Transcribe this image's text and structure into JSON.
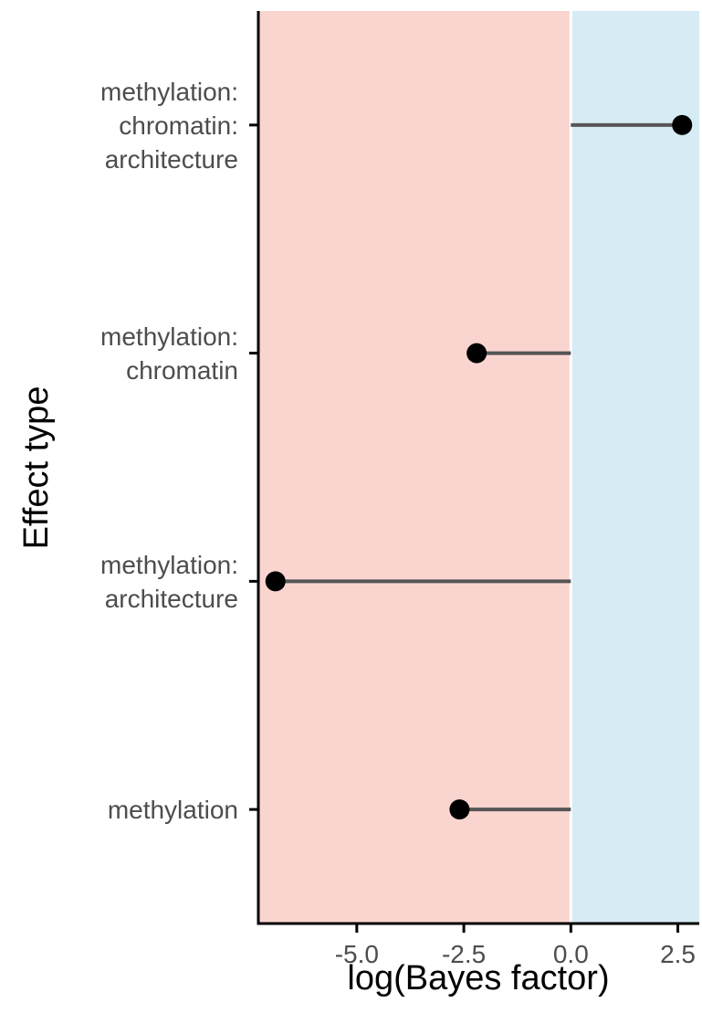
{
  "chart_data": {
    "type": "lollipop",
    "orientation": "horizontal",
    "xlabel": "log(Bayes factor)",
    "ylabel": "Effect type",
    "xlim": [
      -7.3,
      3.0
    ],
    "x_ticks": [
      -5.0,
      -2.5,
      0.0,
      2.5
    ],
    "x_tick_labels": [
      "-5.0",
      "-2.5",
      "0.0",
      "2.5"
    ],
    "baseline": 0,
    "grid": false,
    "categories": [
      {
        "label_lines": [
          "methylation:",
          "chromatin:",
          "architecture"
        ],
        "value": 2.6
      },
      {
        "label_lines": [
          "methylation:",
          "chromatin"
        ],
        "value": -2.2
      },
      {
        "label_lines": [
          "methylation:",
          "architecture"
        ],
        "value": -6.9
      },
      {
        "label_lines": [
          "methylation"
        ],
        "value": -2.6
      }
    ],
    "regions": [
      {
        "side": "negative",
        "color": "#fad5d0"
      },
      {
        "side": "positive",
        "color": "#d6ebf4"
      }
    ],
    "colors": {
      "segment": "#555555",
      "point": "#000000",
      "axis": "#000000",
      "divider": "#ffffff"
    }
  }
}
